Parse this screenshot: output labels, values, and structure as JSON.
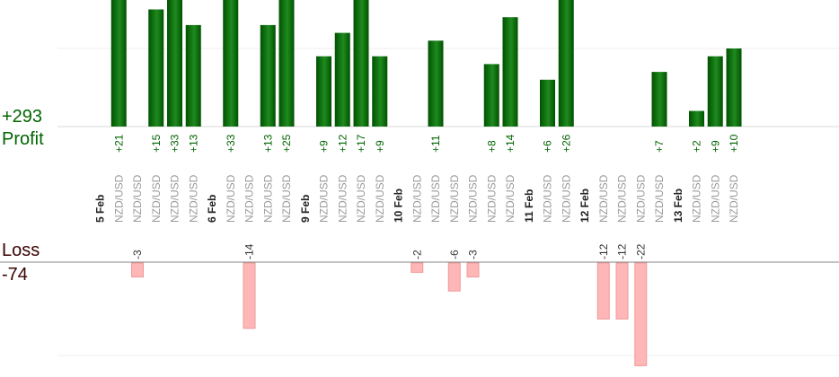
{
  "profit_panel": {
    "total": "+293",
    "label": "Profit"
  },
  "loss_panel": {
    "label": "Loss",
    "total": "-74"
  },
  "colors": {
    "profit_dark": "#005200",
    "profit_light": "#1f8a1f",
    "loss_fill": "#ffb6b6",
    "loss_stroke": "#ee9a9a",
    "profit_text": "#006400",
    "pair_text": "#9a9a9a",
    "date_text": "#222222"
  },
  "chart_data": {
    "type": "bar",
    "title": "",
    "slots": [
      {
        "date": "5 Feb"
      },
      {
        "pair": "NZD/USD",
        "profit": 21,
        "profit_label": "+21"
      },
      {
        "pair": "NZD/USD",
        "loss": -3,
        "loss_label": "-3"
      },
      {
        "pair": "NZD/USD",
        "profit": 15,
        "profit_label": "+15"
      },
      {
        "pair": "NZD/USD",
        "profit": 33,
        "profit_label": "+33"
      },
      {
        "pair": "NZD/USD",
        "profit": 13,
        "profit_label": "+13"
      },
      {
        "date": "6 Feb"
      },
      {
        "pair": "NZD/USD",
        "profit": 33,
        "profit_label": "+33"
      },
      {
        "pair": "NZD/USD",
        "loss": -14,
        "loss_label": "-14"
      },
      {
        "pair": "NZD/USD",
        "profit": 13,
        "profit_label": "+13"
      },
      {
        "pair": "NZD/USD",
        "profit": 25,
        "profit_label": "+25"
      },
      {
        "date": "9 Feb"
      },
      {
        "pair": "NZD/USD",
        "profit": 9,
        "profit_label": "+9"
      },
      {
        "pair": "NZD/USD",
        "profit": 12,
        "profit_label": "+12"
      },
      {
        "pair": "NZD/USD",
        "profit": 17,
        "profit_label": "+17"
      },
      {
        "pair": "NZD/USD",
        "profit": 9,
        "profit_label": "+9"
      },
      {
        "date": "10 Feb"
      },
      {
        "pair": "NZD/USD",
        "loss": -2,
        "loss_label": "-2"
      },
      {
        "pair": "NZD/USD",
        "profit": 11,
        "profit_label": "+11"
      },
      {
        "pair": "NZD/USD",
        "loss": -6,
        "loss_label": "-6"
      },
      {
        "pair": "NZD/USD",
        "loss": -3,
        "loss_label": "-3"
      },
      {
        "pair": "NZD/USD",
        "profit": 8,
        "profit_label": "+8"
      },
      {
        "pair": "NZD/USD",
        "profit": 14,
        "profit_label": "+14"
      },
      {
        "date": "11 Feb"
      },
      {
        "pair": "NZD/USD",
        "profit": 6,
        "profit_label": "+6"
      },
      {
        "pair": "NZD/USD",
        "profit": 26,
        "profit_label": "+26"
      },
      {
        "date": "12 Feb"
      },
      {
        "pair": "NZD/USD",
        "loss": -12,
        "loss_label": "-12"
      },
      {
        "pair": "NZD/USD",
        "loss": -12,
        "loss_label": "-12"
      },
      {
        "pair": "NZD/USD",
        "loss": -22,
        "loss_label": "-22"
      },
      {
        "pair": "NZD/USD",
        "profit": 7,
        "profit_label": "+7"
      },
      {
        "date": "13 Feb"
      },
      {
        "pair": "NZD/USD",
        "profit": 2,
        "profit_label": "+2"
      },
      {
        "pair": "NZD/USD",
        "profit": 9,
        "profit_label": "+9"
      },
      {
        "pair": "NZD/USD",
        "profit": 10,
        "profit_label": "+10"
      }
    ],
    "profit_axis": {
      "gridlines": [
        10
      ]
    },
    "loss_axis": {
      "gridlines": [
        -20
      ]
    }
  }
}
